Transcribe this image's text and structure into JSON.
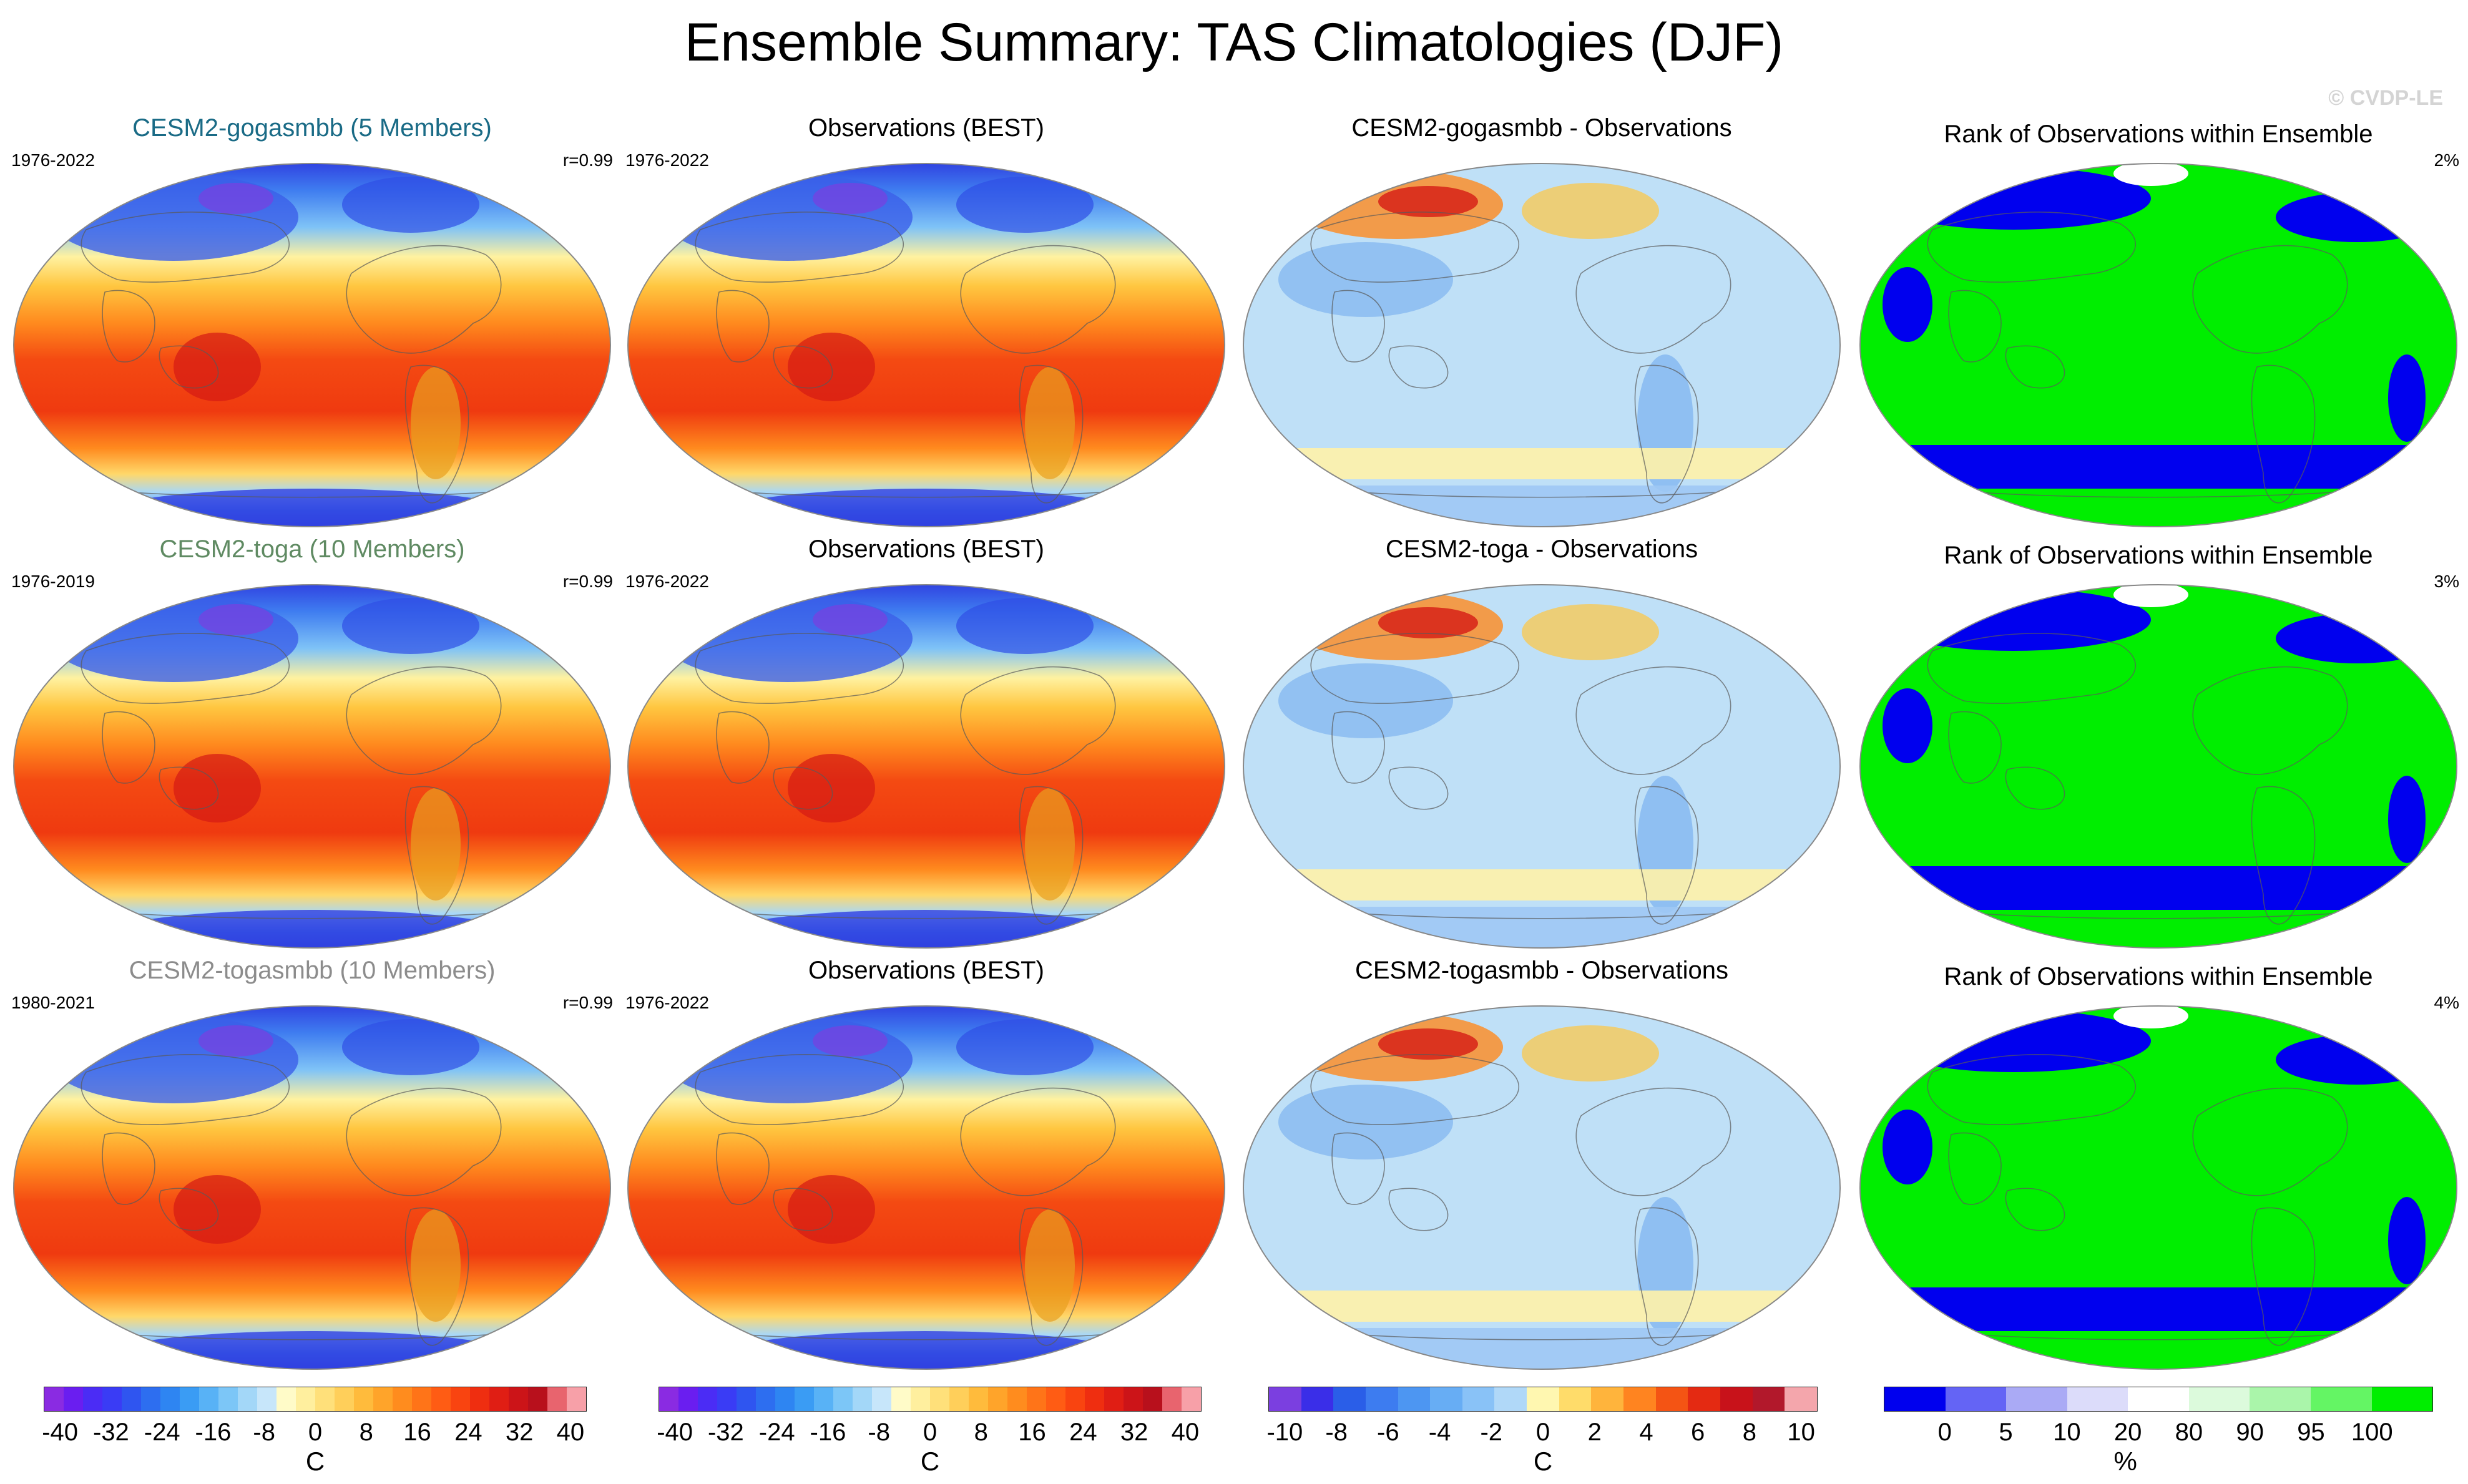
{
  "title": "Ensemble Summary: TAS Climatologies (DJF)",
  "watermark": "© CVDP-LE",
  "rows": [
    {
      "model_title": "CESM2-gogasmbb (5 Members)",
      "model_color": "#1a6b86",
      "model_years": "1976-2022",
      "model_r": "r=0.99",
      "obs_title": "Observations (BEST)",
      "obs_years": "1976-2022",
      "diff_title": "CESM2-gogasmbb - Observations",
      "rank_title": "Rank of Observations within Ensemble",
      "rank_pct": "2%"
    },
    {
      "model_title": "CESM2-toga (10 Members)",
      "model_color": "#5f8a62",
      "model_years": "1976-2019",
      "model_r": "r=0.99",
      "obs_title": "Observations (BEST)",
      "obs_years": "1976-2022",
      "diff_title": "CESM2-toga - Observations",
      "rank_title": "Rank of Observations within Ensemble",
      "rank_pct": "3%"
    },
    {
      "model_title": "CESM2-togasmbb (10 Members)",
      "model_color": "#8c8c8c",
      "model_years": "1980-2021",
      "model_r": "r=0.99",
      "obs_title": "Observations (BEST)",
      "obs_years": "1976-2022",
      "diff_title": "CESM2-togasmbb - Observations",
      "rank_title": "Rank of Observations within Ensemble",
      "rank_pct": "4%"
    }
  ],
  "colorbars": {
    "tas": {
      "ticks": [
        "-40",
        "-32",
        "-24",
        "-16",
        "-8",
        "0",
        "8",
        "16",
        "24",
        "32",
        "40"
      ],
      "unit": "C",
      "colors": [
        "#8a2be2",
        "#6a1ef0",
        "#4b2cf5",
        "#3a3cf5",
        "#2f55f0",
        "#2d6ef0",
        "#2e85f2",
        "#3a9cf4",
        "#58b2f6",
        "#7cc6f7",
        "#a3d7f8",
        "#c7e6fa",
        "#fffbc8",
        "#ffef9e",
        "#ffe07a",
        "#ffcf5a",
        "#ffbb3c",
        "#ffa42a",
        "#ff8c1e",
        "#ff7418",
        "#ff5c14",
        "#f94410",
        "#ef2e10",
        "#e01e14",
        "#cc1418",
        "#b8101c",
        "#e8646e",
        "#f7a0a8"
      ]
    },
    "diff": {
      "ticks": [
        "-10",
        "-8",
        "-6",
        "-4",
        "-2",
        "0",
        "2",
        "4",
        "6",
        "8",
        "10"
      ],
      "unit": "C",
      "colors": [
        "#7b3fe0",
        "#3a2ee8",
        "#2a5ee8",
        "#3d7cf0",
        "#4d96f2",
        "#67adf4",
        "#89c2f7",
        "#b0d8f8",
        "#fff7b0",
        "#ffdc6a",
        "#ffb43c",
        "#ff8420",
        "#f45414",
        "#e42a12",
        "#c8121a",
        "#b2182b",
        "#f4a6ac"
      ]
    },
    "rank": {
      "ticks": [
        "0",
        "5",
        "10",
        "20",
        "80",
        "90",
        "95",
        "100"
      ],
      "unit": "%",
      "colors": [
        "#0000ee",
        "#6464f5",
        "#aaaaf5",
        "#dcdcfa",
        "#ffffff",
        "#dcfadc",
        "#aaf5aa",
        "#64f564",
        "#00ee00"
      ]
    }
  }
}
